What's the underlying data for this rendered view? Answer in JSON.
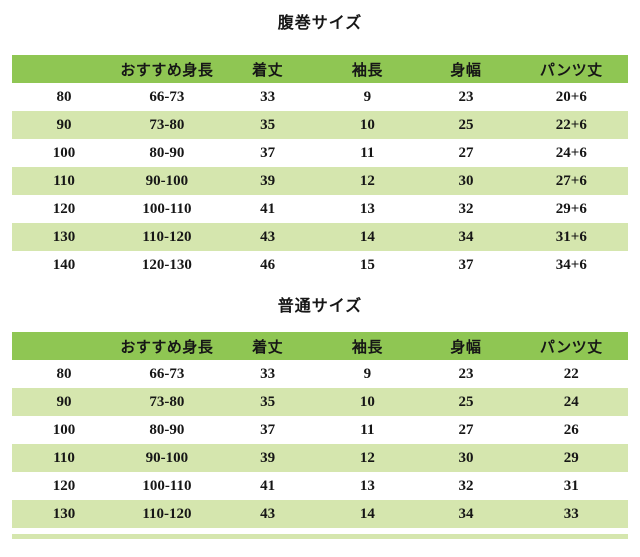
{
  "colors": {
    "header_bg": "#8fc653",
    "row_alt_bg": "#d5e6ae",
    "row_bg": "#ffffff",
    "text_color": "#161616",
    "page_bg": "#ffffff"
  },
  "chart_data": [
    {
      "type": "table",
      "title": "腹巻サイズ",
      "columns": [
        "",
        "おすすめ身長",
        "着丈",
        "袖長",
        "身幅",
        "パンツ丈"
      ],
      "rows": [
        [
          "80",
          "66-73",
          "33",
          "9",
          "23",
          "20+6"
        ],
        [
          "90",
          "73-80",
          "35",
          "10",
          "25",
          "22+6"
        ],
        [
          "100",
          "80-90",
          "37",
          "11",
          "27",
          "24+6"
        ],
        [
          "110",
          "90-100",
          "39",
          "12",
          "30",
          "27+6"
        ],
        [
          "120",
          "100-110",
          "41",
          "13",
          "32",
          "29+6"
        ],
        [
          "130",
          "110-120",
          "43",
          "14",
          "34",
          "31+6"
        ],
        [
          "140",
          "120-130",
          "46",
          "15",
          "37",
          "34+6"
        ]
      ],
      "layout_hints": {
        "striped": true,
        "stripe_pattern": "even-white-odd-green",
        "gridlines": false
      }
    },
    {
      "type": "table",
      "title": "普通サイズ",
      "columns": [
        "",
        "おすすめ身長",
        "着丈",
        "袖長",
        "身幅",
        "パンツ丈"
      ],
      "rows": [
        [
          "80",
          "66-73",
          "33",
          "9",
          "23",
          "22"
        ],
        [
          "90",
          "73-80",
          "35",
          "10",
          "25",
          "24"
        ],
        [
          "100",
          "80-90",
          "37",
          "11",
          "27",
          "26"
        ],
        [
          "110",
          "90-100",
          "39",
          "12",
          "30",
          "29"
        ],
        [
          "120",
          "100-110",
          "41",
          "13",
          "32",
          "31"
        ],
        [
          "130",
          "110-120",
          "43",
          "14",
          "34",
          "33"
        ]
      ],
      "layout_hints": {
        "striped": true,
        "stripe_pattern": "even-white-odd-green",
        "gridlines": false,
        "bottom_row_cut_off": true
      }
    }
  ]
}
